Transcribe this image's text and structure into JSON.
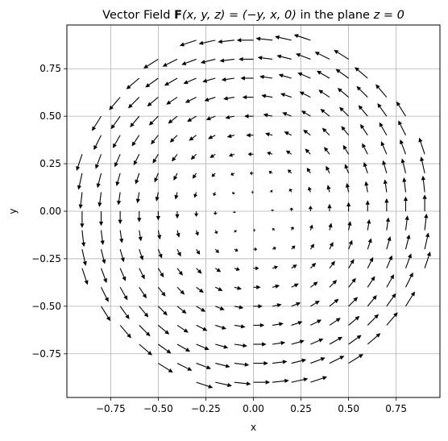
{
  "chart_data": {
    "type": "quiver",
    "title": {
      "prefix": "Vector Field ",
      "bold_symbol": "F",
      "math": "(x, y, z) = (−y, x, 0)",
      "suffix": " in the plane ",
      "plane": "z = 0"
    },
    "xlabel": "x",
    "ylabel": "y",
    "xlim": [
      -0.98,
      0.98
    ],
    "ylim": [
      -0.98,
      0.98
    ],
    "xticks": [
      -0.75,
      -0.5,
      -0.25,
      0.0,
      0.25,
      0.5,
      0.75
    ],
    "xtick_labels": [
      "−0.75",
      "−0.50",
      "−0.25",
      "0.00",
      "0.25",
      "0.50",
      "0.75"
    ],
    "yticks": [
      -0.75,
      -0.5,
      -0.25,
      0.0,
      0.25,
      0.5,
      0.75
    ],
    "ytick_labels": [
      "−0.75",
      "−0.50",
      "−0.25",
      "0.00",
      "0.25",
      "0.50",
      "0.75"
    ],
    "grid": true,
    "field": {
      "u": "-y",
      "v": "x"
    },
    "sampling": {
      "grid_start": -0.9,
      "grid_step": 0.1,
      "grid_count": 19,
      "region_radius": 0.95
    },
    "arrow_color": "#000000",
    "grid_color": "#b0b0b0"
  }
}
